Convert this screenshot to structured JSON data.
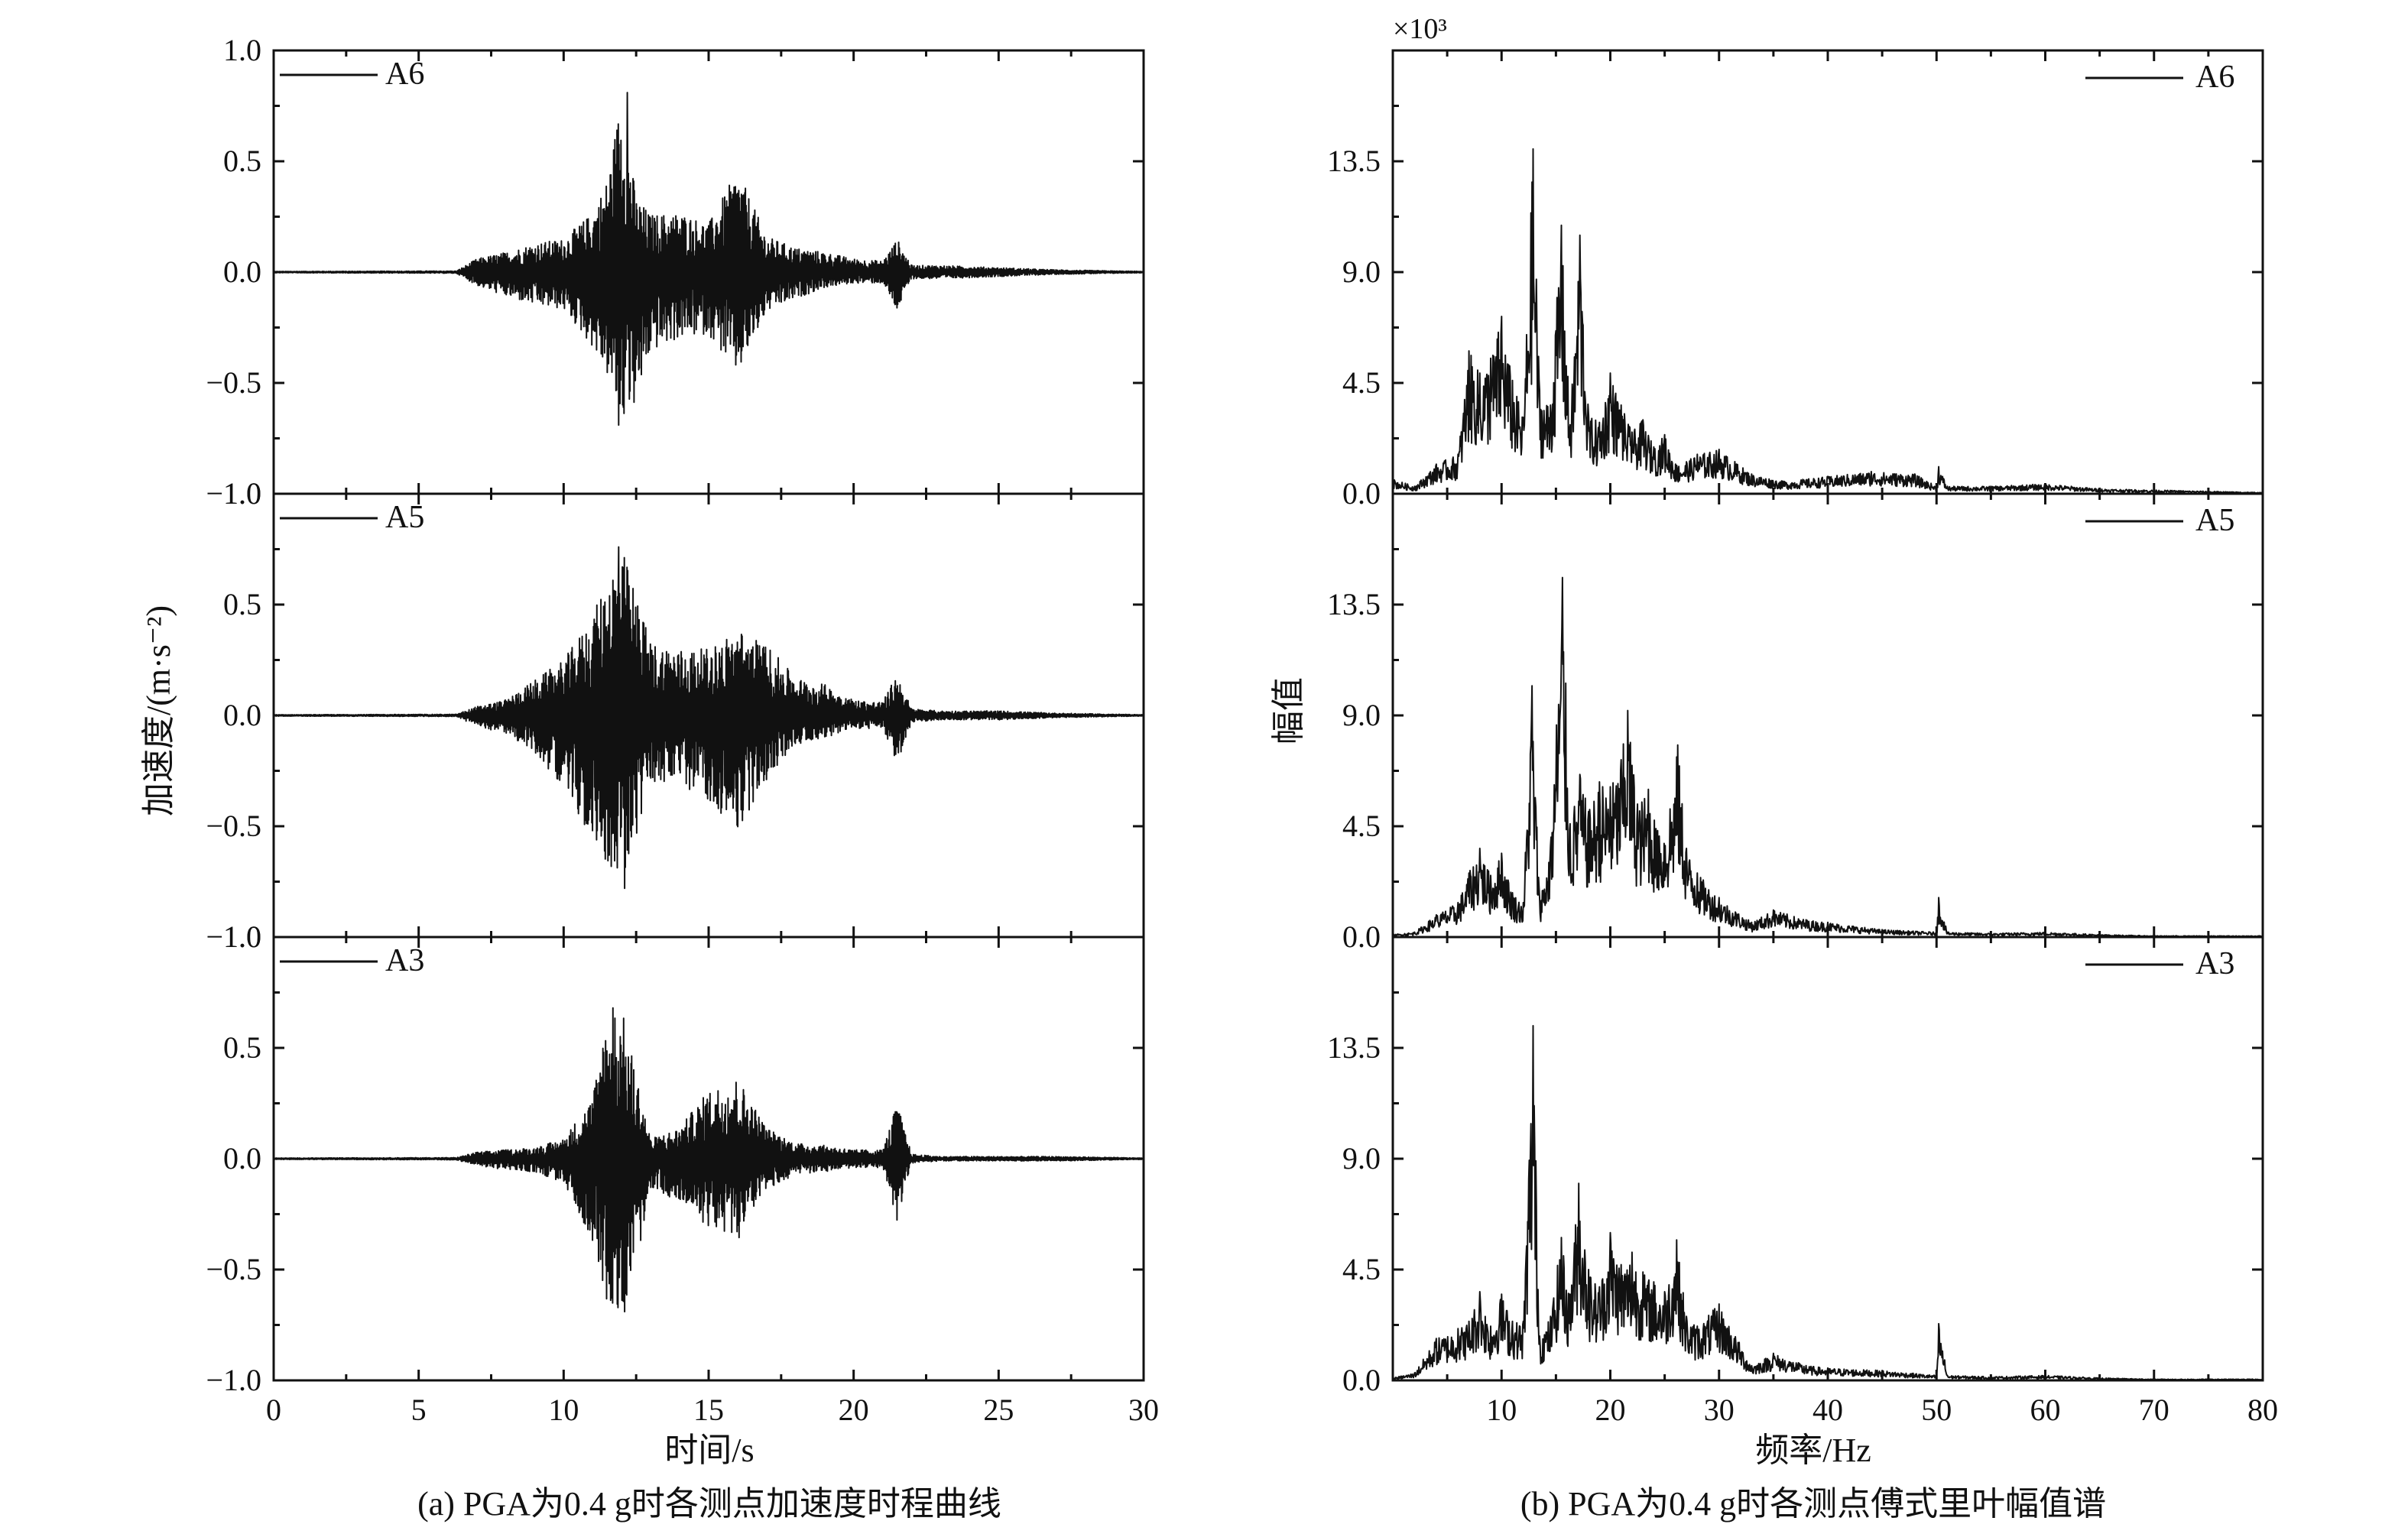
{
  "figure": {
    "left_panel": {
      "ylabel": "加速度/(m·s⁻²)",
      "xlabel": "时间/s",
      "caption": "(a) PGA为0.4 g时各测点加速度时程曲线"
    },
    "right_panel": {
      "ylabel": "幅值",
      "xlabel": "频率/Hz",
      "caption": "(b) PGA为0.4 g时各测点傅式里叶幅值谱",
      "multiplier": "×10³"
    }
  },
  "chart_data": [
    {
      "type": "line",
      "title": "",
      "caption": "(a) PGA为0.4 g时各测点加速度时程曲线",
      "xlabel": "时间/s",
      "ylabel": "加速度/(m·s⁻²)",
      "xlim": [
        0,
        30
      ],
      "x_ticks": [
        "0",
        "5",
        "10",
        "15",
        "20",
        "25",
        "30"
      ],
      "ylim": [
        -1.0,
        1.0
      ],
      "y_ticks": [
        "-1.0",
        "-0.5",
        "0.0",
        "0.5",
        "1.0"
      ],
      "grid": false,
      "legend_position": "top-left",
      "subplots": [
        {
          "name": "A6",
          "envelope": {
            "t": [
              0,
              6.3,
              7,
              8,
              9,
              10,
              11,
              11.5,
              12,
              12.5,
              13,
              14,
              15,
              16,
              17,
              18,
              19,
              20,
              21,
              21.5,
              22,
              23,
              25,
              27,
              30
            ],
            "upper": [
              0.003,
              0.005,
              0.06,
              0.09,
              0.13,
              0.15,
              0.27,
              0.42,
              0.81,
              0.34,
              0.26,
              0.27,
              0.22,
              0.46,
              0.16,
              0.11,
              0.09,
              0.06,
              0.05,
              0.15,
              0.03,
              0.03,
              0.02,
              0.01,
              0.003
            ],
            "lower": [
              -0.003,
              -0.005,
              -0.06,
              -0.11,
              -0.15,
              -0.17,
              -0.34,
              -0.47,
              -0.69,
              -0.6,
              -0.36,
              -0.3,
              -0.28,
              -0.47,
              -0.18,
              -0.12,
              -0.07,
              -0.05,
              -0.05,
              -0.18,
              -0.03,
              -0.03,
              -0.02,
              -0.01,
              -0.003
            ]
          },
          "peaks": [
            {
              "t": 12.2,
              "value": 0.81
            },
            {
              "t": 11.9,
              "value": -0.69
            }
          ]
        },
        {
          "name": "A5",
          "envelope": {
            "t": [
              0,
              6.3,
              7,
              8,
              9,
              10,
              11,
              11.5,
              12,
              12.5,
              13,
              14,
              15,
              16,
              17,
              18,
              19,
              20,
              21,
              21.5,
              22,
              23,
              25,
              27,
              30
            ],
            "upper": [
              0.003,
              0.005,
              0.04,
              0.07,
              0.16,
              0.25,
              0.45,
              0.62,
              0.76,
              0.55,
              0.33,
              0.3,
              0.3,
              0.39,
              0.32,
              0.17,
              0.14,
              0.07,
              0.06,
              0.19,
              0.03,
              0.02,
              0.02,
              0.01,
              0.003
            ],
            "lower": [
              -0.003,
              -0.005,
              -0.05,
              -0.08,
              -0.17,
              -0.32,
              -0.58,
              -0.66,
              -0.78,
              -0.56,
              -0.3,
              -0.32,
              -0.38,
              -0.53,
              -0.29,
              -0.13,
              -0.1,
              -0.06,
              -0.06,
              -0.22,
              -0.03,
              -0.02,
              -0.02,
              -0.01,
              -0.003
            ]
          },
          "peaks": [
            {
              "t": 11.9,
              "value": 0.76
            },
            {
              "t": 12.1,
              "value": -0.78
            }
          ]
        },
        {
          "name": "A3",
          "envelope": {
            "t": [
              0,
              6.3,
              7,
              8,
              9,
              10,
              11,
              11.5,
              12,
              12.5,
              13,
              14,
              15,
              16,
              17,
              18,
              19,
              20,
              21,
              21.5,
              22,
              23,
              25,
              27,
              30
            ],
            "upper": [
              0.003,
              0.005,
              0.03,
              0.04,
              0.05,
              0.09,
              0.28,
              0.68,
              0.68,
              0.39,
              0.09,
              0.14,
              0.31,
              0.37,
              0.14,
              0.07,
              0.06,
              0.04,
              0.04,
              0.25,
              0.02,
              0.01,
              0.01,
              0.01,
              0.003
            ],
            "lower": [
              -0.003,
              -0.005,
              -0.03,
              -0.05,
              -0.06,
              -0.11,
              -0.37,
              -0.65,
              -0.69,
              -0.5,
              -0.13,
              -0.2,
              -0.31,
              -0.37,
              -0.14,
              -0.07,
              -0.06,
              -0.04,
              -0.04,
              -0.28,
              -0.02,
              -0.01,
              -0.01,
              -0.01,
              -0.003
            ]
          },
          "peaks": [
            {
              "t": 11.7,
              "value": 0.68
            },
            {
              "t": 12.1,
              "value": -0.69
            }
          ]
        }
      ]
    },
    {
      "type": "line",
      "title": "",
      "caption": "(b) PGA为0.4 g时各测点傅式里叶幅值谱",
      "xlabel": "频率/Hz",
      "ylabel": "幅值",
      "y_multiplier": "×10³",
      "xlim": [
        0,
        80
      ],
      "x_ticks": [
        "10",
        "20",
        "30",
        "40",
        "50",
        "60",
        "70",
        "80"
      ],
      "ylim": [
        0,
        18
      ],
      "y_ticks": [
        "0.0",
        "4.5",
        "9.0",
        "13.5"
      ],
      "grid": false,
      "legend_position": "top-right",
      "subplots": [
        {
          "name": "A6",
          "spectrum": {
            "f": [
              0,
              2,
              4,
              6,
              7,
              8,
              9,
              10,
              11,
              12,
              12.9,
              13.5,
              14.5,
              15.5,
              16.3,
              17.2,
              18,
              19,
              20,
              21,
              22,
              23,
              24,
              25,
              26,
              27,
              28,
              30,
              33,
              36,
              40,
              44,
              48,
              50,
              50.2,
              51,
              55,
              60,
              65,
              70,
              75,
              80
            ],
            "amp": [
              0.6,
              0.3,
              1.2,
              1.6,
              5.8,
              4.9,
              5.5,
              7.2,
              4.6,
              3.1,
              14.0,
              4.2,
              3.6,
              10.9,
              2.8,
              10.5,
              3.2,
              2.9,
              4.9,
              3.6,
              2.5,
              3.0,
              1.9,
              2.4,
              1.2,
              1.3,
              1.6,
              1.8,
              0.8,
              0.5,
              0.7,
              0.9,
              0.8,
              0.3,
              1.1,
              0.3,
              0.3,
              0.4,
              0.2,
              0.15,
              0.1,
              0.05
            ]
          },
          "peak": {
            "f": 12.9,
            "value": 14.0
          }
        },
        {
          "name": "A5",
          "spectrum": {
            "f": [
              0,
              2,
              4,
              6,
              7,
              8,
              9,
              10,
              11,
              12,
              12.8,
              13.5,
              14.5,
              15.6,
              16.3,
              17.2,
              18,
              19,
              20,
              21,
              21.6,
              22.5,
              23.5,
              24.5,
              25.5,
              26.2,
              27,
              28,
              30,
              33,
              35,
              38,
              40,
              45,
              50,
              50.2,
              51,
              55,
              60,
              65,
              70,
              80
            ],
            "amp": [
              0.1,
              0.2,
              0.9,
              1.4,
              2.6,
              3.6,
              2.5,
              3.4,
              1.8,
              1.4,
              10.2,
              1.6,
              3.7,
              14.6,
              4.6,
              6.6,
              5.1,
              6.3,
              6.1,
              7.2,
              9.2,
              5.4,
              6.0,
              4.1,
              5.2,
              7.8,
              3.6,
              2.6,
              1.6,
              0.6,
              1.1,
              0.7,
              0.6,
              0.3,
              0.2,
              1.6,
              0.2,
              0.15,
              0.2,
              0.1,
              0.05,
              0.05
            ]
          },
          "peak": {
            "f": 15.6,
            "value": 14.6
          }
        },
        {
          "name": "A3",
          "spectrum": {
            "f": [
              0,
              2,
              4,
              6,
              7,
              8,
              9,
              10,
              11,
              12,
              12.9,
              13.5,
              14.5,
              15.5,
              16.2,
              17.1,
              18,
              19,
              20,
              21,
              22,
              23,
              24,
              25,
              26.1,
              27,
              28,
              30,
              33,
              35,
              38,
              40,
              45,
              50,
              50.2,
              51,
              55,
              60,
              65,
              70,
              80
            ],
            "amp": [
              0.1,
              0.3,
              1.7,
              2.1,
              2.4,
              3.6,
              2.2,
              3.5,
              2.4,
              2.4,
              14.4,
              1.8,
              2.6,
              5.8,
              3.5,
              8.0,
              4.5,
              3.8,
              6.0,
              4.7,
              5.2,
              4.4,
              4.0,
              3.6,
              5.7,
              2.6,
              2.2,
              3.1,
              0.6,
              1.1,
              0.6,
              0.5,
              0.4,
              0.2,
              2.3,
              0.2,
              0.15,
              0.2,
              0.1,
              0.05,
              0.05
            ]
          },
          "peak": {
            "f": 12.9,
            "value": 14.4
          }
        }
      ]
    }
  ]
}
